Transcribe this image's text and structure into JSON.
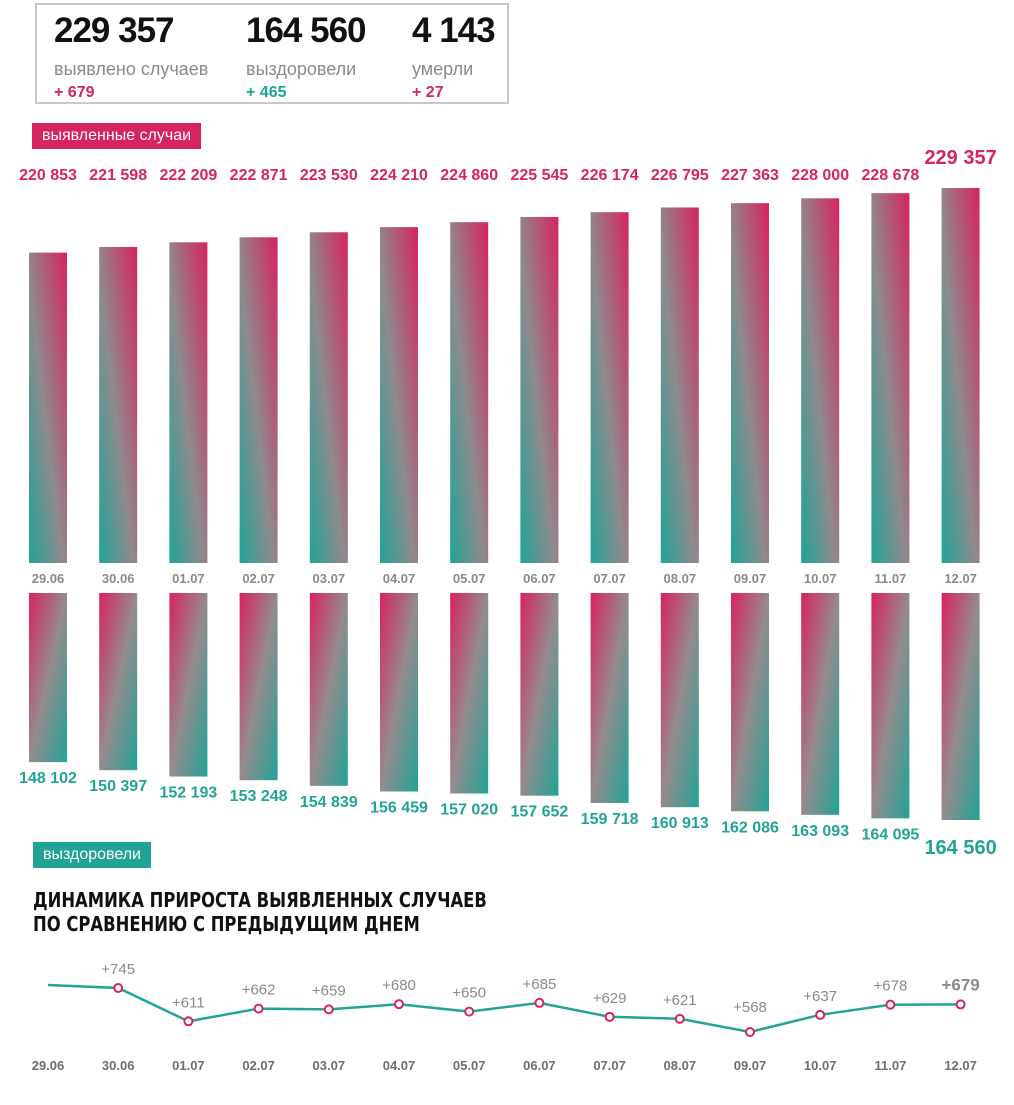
{
  "summary": {
    "cases": {
      "value": "229 357",
      "label": "выявлено случаев",
      "delta": "+ 679"
    },
    "recovered": {
      "value": "164 560",
      "label": "выздоровели",
      "delta": "+ 465"
    },
    "deaths": {
      "value": "4 143",
      "label": "умерли",
      "delta": "+ 27"
    }
  },
  "labels": {
    "cases_pill": "выявленные случаи",
    "recovered_pill": "выздоровели",
    "line_title_1": "ДИНАМИКА ПРИРОСТА ВЫЯВЛЕННЫХ СЛУЧАЕВ",
    "line_title_2": "ПО СРАВНЕНИЮ С ПРЕДЫДУЩИМ ДНЕМ"
  },
  "colors": {
    "pink": "#d6245e",
    "teal": "#21a396",
    "grey_text": "#8a8a8a",
    "dark_text": "#111111"
  },
  "chart_data": [
    {
      "type": "bar",
      "name": "выявленные случаи",
      "categories": [
        "29.06",
        "30.06",
        "01.07",
        "02.07",
        "03.07",
        "04.07",
        "05.07",
        "06.07",
        "07.07",
        "08.07",
        "09.07",
        "10.07",
        "11.07",
        "12.07"
      ],
      "values": [
        220853,
        221598,
        222209,
        222871,
        223530,
        224210,
        224860,
        225545,
        226174,
        226795,
        227363,
        228000,
        228678,
        229357
      ],
      "value_labels": [
        "220 853",
        "221 598",
        "222 209",
        "222 871",
        "223 530",
        "224 210",
        "224 860",
        "225 545",
        "226 174",
        "226 795",
        "227 363",
        "228 000",
        "228 678",
        "229 357"
      ]
    },
    {
      "type": "bar",
      "name": "выздоровели",
      "categories": [
        "29.06",
        "30.06",
        "01.07",
        "02.07",
        "03.07",
        "04.07",
        "05.07",
        "06.07",
        "07.07",
        "08.07",
        "09.07",
        "10.07",
        "11.07",
        "12.07"
      ],
      "values": [
        148102,
        150397,
        152193,
        153248,
        154839,
        156459,
        157020,
        157652,
        159718,
        160913,
        162086,
        163093,
        164095,
        164560
      ],
      "value_labels": [
        "148 102",
        "150 397",
        "152 193",
        "153 248",
        "154 839",
        "156 459",
        "157 020",
        "157 652",
        "159 718",
        "160 913",
        "162 086",
        "163 093",
        "164 095",
        "164 560"
      ]
    },
    {
      "type": "line",
      "title": "ДИНАМИКА ПРИРОСТА ВЫЯВЛЕННЫХ СЛУЧАЕВ ПО СРАВНЕНИЮ С ПРЕДЫДУЩИМ ДНЕМ",
      "categories": [
        "29.06",
        "30.06",
        "01.07",
        "02.07",
        "03.07",
        "04.07",
        "05.07",
        "06.07",
        "07.07",
        "08.07",
        "09.07",
        "10.07",
        "11.07",
        "12.07"
      ],
      "values": [
        757,
        745,
        611,
        662,
        659,
        680,
        650,
        685,
        629,
        621,
        568,
        637,
        678,
        679
      ],
      "value_labels": [
        "",
        "+745",
        "+611",
        "+662",
        "+659",
        "+680",
        "+650",
        "+685",
        "+629",
        "+621",
        "+568",
        "+637",
        "+678",
        "+679"
      ]
    }
  ]
}
